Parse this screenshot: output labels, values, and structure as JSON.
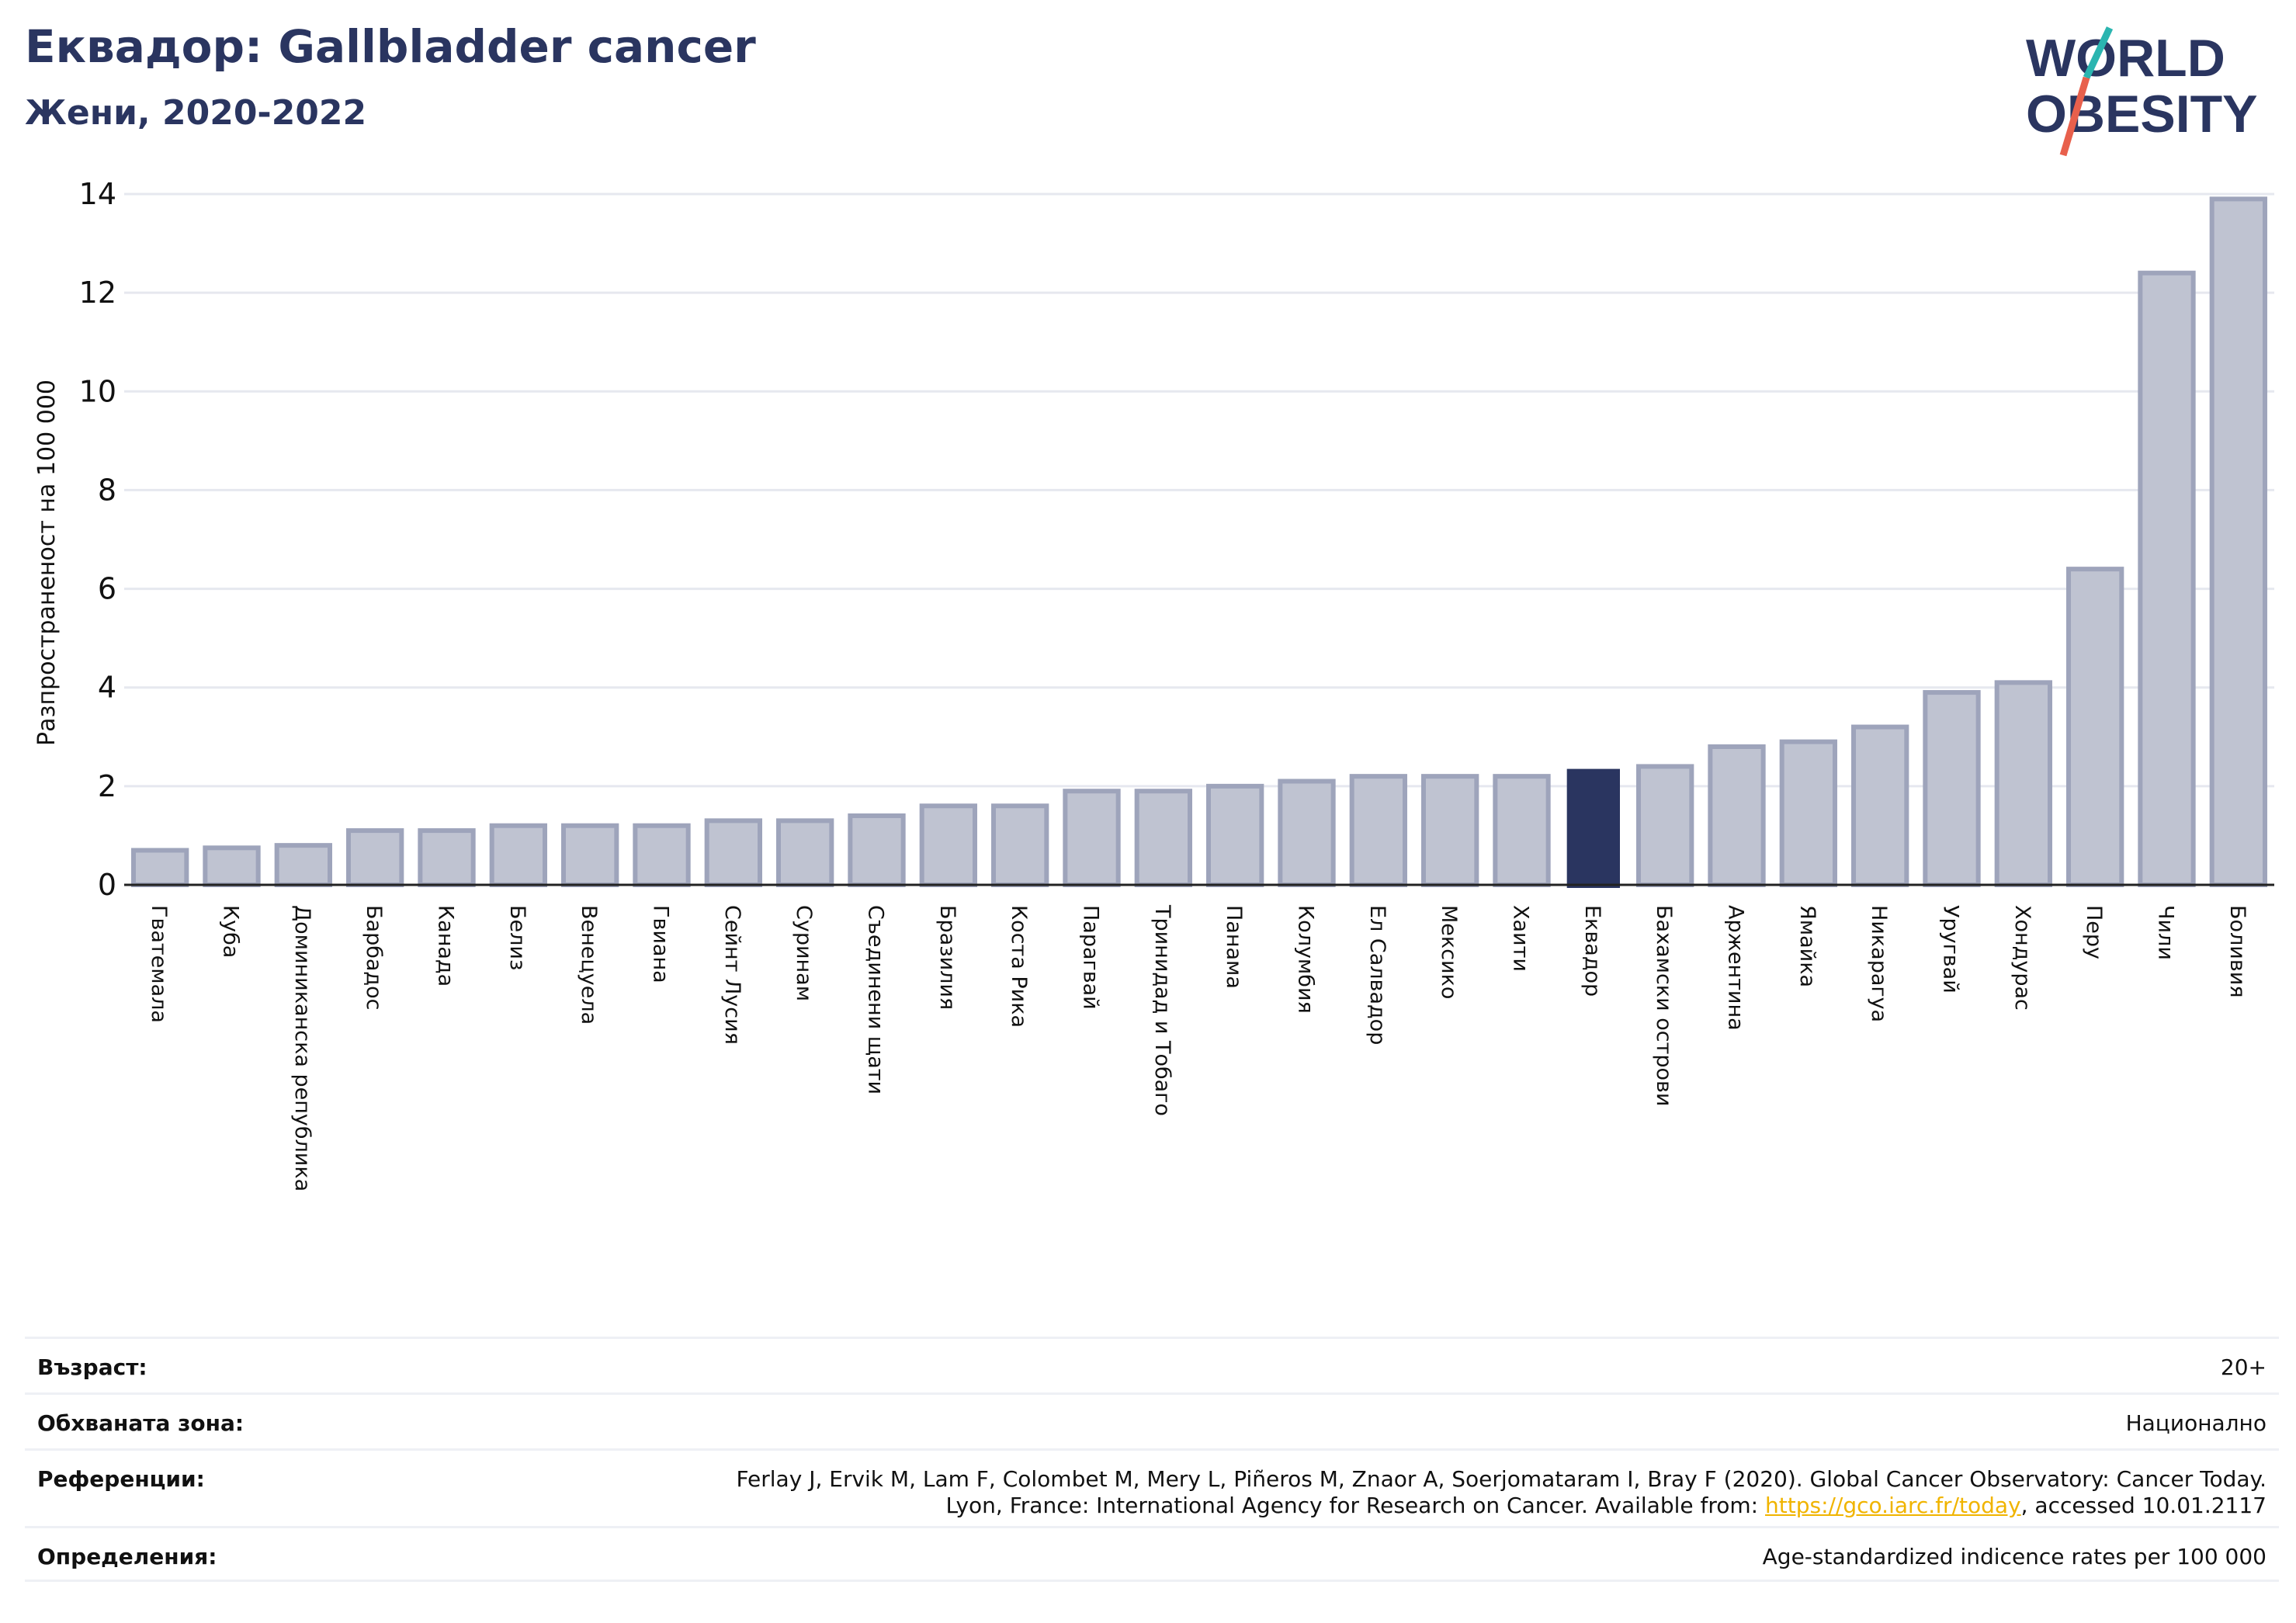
{
  "header": {
    "title": "Еквадор: Gallbladder cancer",
    "subtitle": "Жени, 2020-2022"
  },
  "logo": {
    "line1": "WORLD",
    "line2": "OBESITY",
    "colors": {
      "text": "#2a3560",
      "slash_top": "#2bb5b0",
      "slash_bottom": "#e8604c"
    }
  },
  "colors": {
    "bar": "#bfc3d1",
    "bar_edge": "#9ea4bb",
    "highlight": "#2a3560",
    "grid": "#e6e8ef",
    "axis_text": "#111111"
  },
  "chart_data": {
    "type": "bar",
    "ylabel": "Разпространеност  на 100 000",
    "ylim": [
      0,
      14
    ],
    "yticks": [
      0,
      2,
      4,
      6,
      8,
      10,
      12,
      14
    ],
    "grid": true,
    "highlight": "Еквадор",
    "categories": [
      "Гватемала",
      "Куба",
      "Доминиканска република",
      "Барбадос",
      "Канада",
      "Белиз",
      "Венецуела",
      "Гвиана",
      "Сейнт Лусия",
      "Суринам",
      "Съединени щати",
      "Бразилия",
      "Коста Рика",
      "Парагвай",
      "Тринидад и Тобаго",
      "Панама",
      "Колумбия",
      "Ел Салвадор",
      "Мексико",
      "Хаити",
      "Еквадор",
      "Бахамски острови",
      "Аржентина",
      "Ямайка",
      "Никарагуа",
      "Уругвай",
      "Хондурас",
      "Перу",
      "Чили",
      "Боливия"
    ],
    "values": [
      0.7,
      0.75,
      0.8,
      1.1,
      1.1,
      1.2,
      1.2,
      1.2,
      1.3,
      1.3,
      1.4,
      1.6,
      1.6,
      1.9,
      1.9,
      2.0,
      2.1,
      2.2,
      2.2,
      2.2,
      2.35,
      2.4,
      2.8,
      2.9,
      3.2,
      3.9,
      4.1,
      6.4,
      12.4,
      13.9
    ]
  },
  "meta": {
    "age_label": "Възраст:",
    "age_value": "20+",
    "coverage_label": "Обхваната зона:",
    "coverage_value": "Национално",
    "references_label": "Референции:",
    "references_line1": "Ferlay J, Ervik M, Lam F, Colombet M, Mery L, Piñeros M, Znaor A, Soerjomataram I, Bray F (2020). Global Cancer Observatory: Cancer Today.",
    "references_line2_pre": "Lyon, France: International Agency for Research on Cancer. Available from: ",
    "references_link": "https://gco.iarc.fr/today",
    "references_line2_post": ", accessed 10.01.2117",
    "definitions_label": "Определения:",
    "definitions_value": "Age-standardized indicence rates per 100 000"
  }
}
